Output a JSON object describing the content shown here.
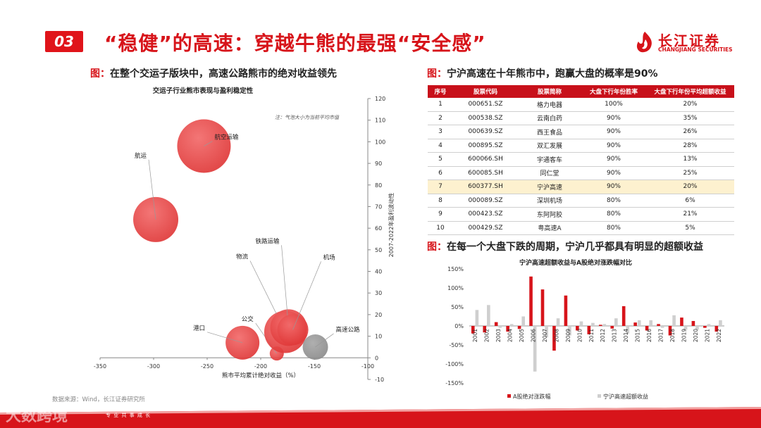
{
  "header": {
    "section_number": "03",
    "title": "“稳健”的高速：穿越牛熊的最强“安全感”"
  },
  "logo": {
    "name_cn": "长江证券",
    "name_en": "CHANGJIANG SECURITIES"
  },
  "left_panel": {
    "caption_prefix": "图：",
    "caption_text": "在整个交运子版块中，高速公路熊市的绝对收益领先"
  },
  "right_top_panel": {
    "caption_prefix": "图：",
    "caption_text": "宁沪高速在十年熊市中，跑赢大盘的概率是",
    "caption_highlight": "90%"
  },
  "right_bottom_panel": {
    "caption_prefix": "图：",
    "caption_text": "在每一个大盘下跌的周期，宁沪几乎都具有明显的超额收益"
  },
  "colors": {
    "brand_red": "#d7141a",
    "bubble_red": "#e03a3a",
    "bubble_gray": "#8c8c8c",
    "bar_gray": "#cfcfcf",
    "highlight_row": "#fdf1cf"
  },
  "table": {
    "headers": [
      "序号",
      "股票代码",
      "股票简称",
      "大盘下行年份胜率",
      "大盘下行年份平均超额收益"
    ],
    "rows": [
      [
        "1",
        "000651.SZ",
        "格力电器",
        "100%",
        "20%"
      ],
      [
        "2",
        "000538.SZ",
        "云南白药",
        "90%",
        "35%"
      ],
      [
        "3",
        "000639.SZ",
        "西王食品",
        "90%",
        "26%"
      ],
      [
        "4",
        "000895.SZ",
        "双汇发展",
        "90%",
        "28%"
      ],
      [
        "5",
        "600066.SH",
        "宇通客车",
        "90%",
        "13%"
      ],
      [
        "6",
        "600085.SH",
        "同仁堂",
        "90%",
        "25%"
      ],
      [
        "7",
        "600377.SH",
        "宁沪高速",
        "90%",
        "20%"
      ],
      [
        "8",
        "000089.SZ",
        "深圳机场",
        "80%",
        "6%"
      ],
      [
        "9",
        "000423.SZ",
        "东阿阿胶",
        "80%",
        "21%"
      ],
      [
        "10",
        "000429.SZ",
        "粤高速A",
        "80%",
        "5%"
      ]
    ],
    "highlight_row_index": 6
  },
  "source_text": "数据来源：Wind，长江证券研究所",
  "footer_text": "专 业    共 事 成 长",
  "watermark_text": "大数跨境",
  "chart_data": [
    {
      "type": "scatter",
      "title": "交运子行业熊市表现与盈利稳定性",
      "note": "注：气泡大小为当前平均市值",
      "xlabel": "熊市平均累计绝对收益（%）",
      "ylabel": "2007-2022年盈利波动性",
      "xlim": [
        -350,
        -100
      ],
      "ylim": [
        -10,
        120
      ],
      "xticks": [
        -350,
        -300,
        -250,
        -200,
        -150,
        -100
      ],
      "yticks": [
        -10,
        0,
        10,
        20,
        30,
        40,
        50,
        60,
        70,
        80,
        90,
        100,
        110,
        120
      ],
      "points": [
        {
          "name": "航空运输",
          "x": -253,
          "y": 98,
          "size": 38,
          "color": "red"
        },
        {
          "name": "航运",
          "x": -298,
          "y": 64,
          "size": 32,
          "color": "red"
        },
        {
          "name": "港口",
          "x": -217,
          "y": 7,
          "size": 24,
          "color": "red"
        },
        {
          "name": "公交",
          "x": -185,
          "y": 2,
          "size": 10,
          "color": "red"
        },
        {
          "name": "物流",
          "x": -177,
          "y": 12,
          "size": 30,
          "color": "red"
        },
        {
          "name": "铁路运输",
          "x": -174,
          "y": 14,
          "size": 26,
          "color": "red"
        },
        {
          "name": "机场",
          "x": -170,
          "y": 13,
          "size": 22,
          "color": "red"
        },
        {
          "name": "高速公路",
          "x": -149,
          "y": 5,
          "size": 18,
          "color": "gray"
        }
      ]
    },
    {
      "type": "bar",
      "title": "宁沪高速超额收益与A股绝对涨跌幅对比",
      "categories": [
        "2001",
        "2002",
        "2003",
        "2004",
        "2005",
        "2006",
        "2007",
        "2008",
        "2009",
        "2010",
        "2011",
        "2012",
        "2013",
        "2014",
        "2015",
        "2016",
        "2017",
        "2018",
        "2019",
        "2020",
        "2021",
        "2022"
      ],
      "ylim": [
        -150,
        150
      ],
      "yticks": [
        -150,
        -100,
        -50,
        0,
        50,
        100,
        150
      ],
      "series": [
        {
          "name": "A股绝对涨跌幅",
          "color": "red",
          "values": [
            -20,
            -17,
            10,
            -15,
            -8,
            130,
            96,
            -65,
            80,
            -12,
            -22,
            3,
            -7,
            52,
            9,
            -12,
            5,
            -25,
            22,
            13,
            -5,
            -15
          ]
        },
        {
          "name": "宁沪高速超额收益",
          "color": "gray",
          "values": [
            42,
            55,
            -5,
            5,
            25,
            -120,
            -30,
            20,
            -25,
            12,
            8,
            5,
            20,
            -20,
            15,
            15,
            -5,
            28,
            -10,
            -10,
            5,
            15
          ]
        }
      ]
    }
  ]
}
